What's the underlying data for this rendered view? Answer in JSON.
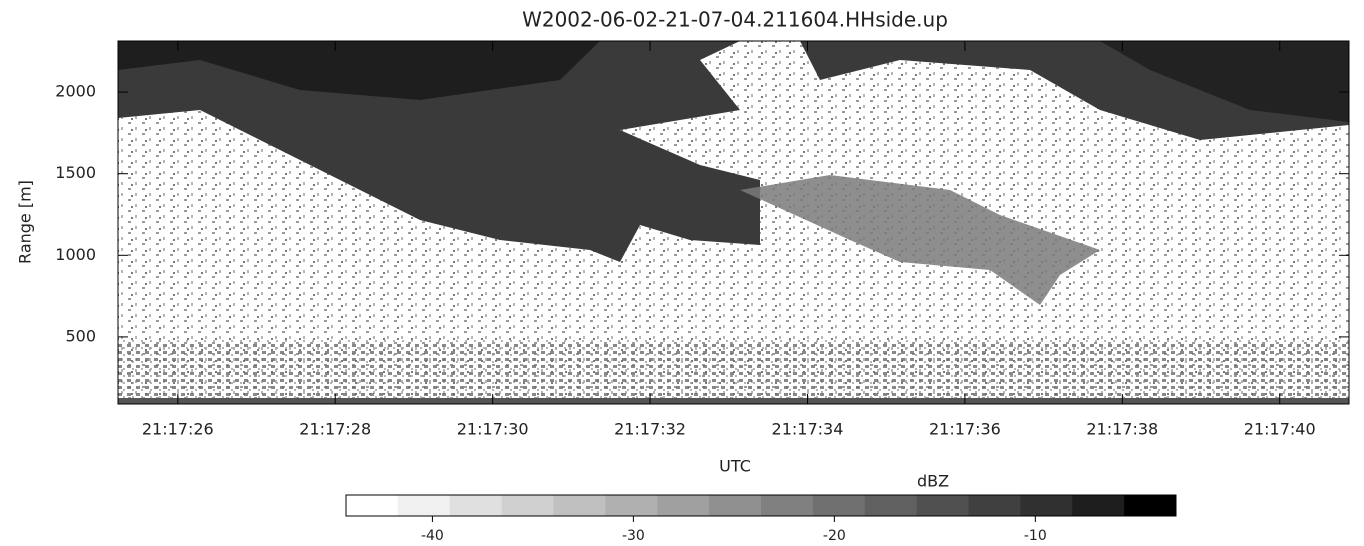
{
  "chart_data": {
    "type": "heatmap",
    "title": "W2002-06-02-21-07-04.211604.HHside.up",
    "xlabel": "UTC",
    "ylabel": "Range [m]",
    "xlim": [
      76645.24,
      76660.88
    ],
    "xticks": [
      {
        "value": 76646,
        "label": "21:17:26"
      },
      {
        "value": 76648,
        "label": "21:17:28"
      },
      {
        "value": 76650,
        "label": "21:17:30"
      },
      {
        "value": 76652,
        "label": "21:17:32"
      },
      {
        "value": 76654,
        "label": "21:17:34"
      },
      {
        "value": 76656,
        "label": "21:17:36"
      },
      {
        "value": 76658,
        "label": "21:17:38"
      },
      {
        "value": 76660,
        "label": "21:17:40"
      }
    ],
    "ylim": [
      89,
      2313
    ],
    "yticks": [
      500,
      1000,
      1500,
      2000
    ],
    "colorbar": {
      "label": "dBZ",
      "clim": [
        -44.3,
        -3
      ],
      "ticks": [
        -40,
        -30,
        -20,
        -10
      ],
      "colors": [
        "#ffffff",
        "#f0f0f0",
        "#e0e0e0",
        "#d0d0d0",
        "#c0c0c0",
        "#b0b0b0",
        "#a0a0a0",
        "#909090",
        "#808080",
        "#707070",
        "#606060",
        "#505050",
        "#404040",
        "#303030",
        "#1e1e1e",
        "#000000"
      ]
    }
  }
}
